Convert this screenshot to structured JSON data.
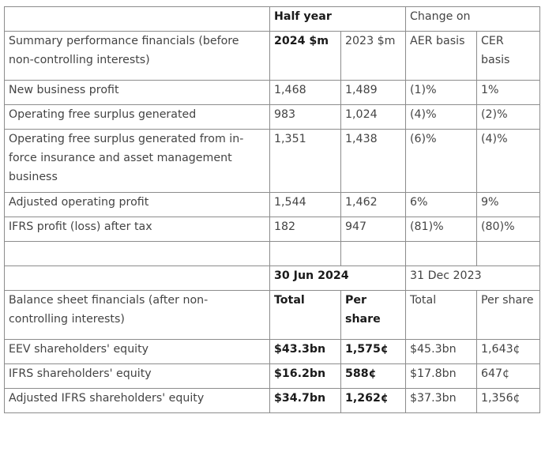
{
  "table": {
    "top_header": {
      "label": "",
      "group1": "Half year",
      "group2": "Change on"
    },
    "sub_header": {
      "label": "Summary performance financials (before non-controlling interests)",
      "col1": "2024 $m",
      "col2": "2023 $m",
      "col3": "AER basis",
      "col4": "CER basis"
    },
    "performance_rows": [
      {
        "label": "New business profit",
        "v2024": "1,468",
        "v2023": "1,489",
        "aer": "(1)%",
        "cer": "1%"
      },
      {
        "label": "Operating free surplus generated",
        "v2024": "983",
        "v2023": "1,024",
        "aer": "(4)%",
        "cer": "(2)%"
      },
      {
        "label": "Operating free surplus generated from in-force insurance and asset management business",
        "v2024": "1,351",
        "v2023": "1,438",
        "aer": "(6)%",
        "cer": "(4)%"
      },
      {
        "label": "Adjusted operating profit",
        "v2024": "1,544",
        "v2023": "1,462",
        "aer": "6%",
        "cer": "9%"
      },
      {
        "label": "IFRS profit (loss) after tax",
        "v2024": "182",
        "v2023": "947",
        "aer": "(81)%",
        "cer": "(80)%"
      }
    ],
    "balance_header": {
      "date1": "30 Jun 2024",
      "date2": "31 Dec 2023"
    },
    "balance_sub_header": {
      "label": "Balance sheet financials (after non-controlling interests)",
      "col1": "Total",
      "col2": "Per share",
      "col3": "Total",
      "col4": "Per share"
    },
    "balance_rows": [
      {
        "label": "EEV shareholders' equity",
        "total_2024": "$43.3bn",
        "per_share_2024": "1,575¢",
        "total_2023": "$45.3bn",
        "per_share_2023": "1,643¢"
      },
      {
        "label": "IFRS shareholders' equity",
        "total_2024": "$16.2bn",
        "per_share_2024": "588¢",
        "total_2023": "$17.8bn",
        "per_share_2023": "647¢"
      },
      {
        "label": "Adjusted IFRS shareholders' equity",
        "total_2024": "$34.7bn",
        "per_share_2024": "1,262¢",
        "total_2023": "$37.3bn",
        "per_share_2023": "1,356¢"
      }
    ]
  }
}
